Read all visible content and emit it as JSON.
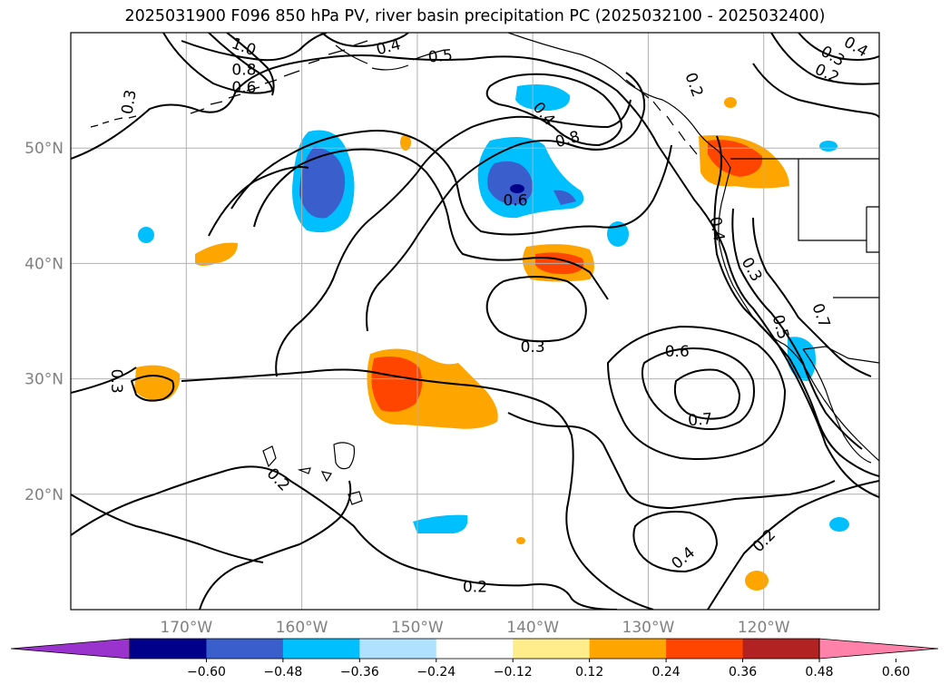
{
  "title": "2025031900 F096 850 hPa PV, river basin precipitation PC (2025032100 - 2025032400)",
  "map": {
    "lon_range": [
      -180,
      -110
    ],
    "lat_range": [
      10,
      60
    ],
    "lon_ticks": [
      {
        "lon": -170,
        "label": "170°W"
      },
      {
        "lon": -160,
        "label": "160°W"
      },
      {
        "lon": -150,
        "label": "150°W"
      },
      {
        "lon": -140,
        "label": "140°W"
      },
      {
        "lon": -130,
        "label": "130°W"
      },
      {
        "lon": -120,
        "label": "120°W"
      }
    ],
    "lat_ticks": [
      {
        "lat": 20,
        "label": "20°N"
      },
      {
        "lat": 30,
        "label": "30°N"
      },
      {
        "lat": 40,
        "label": "40°N"
      },
      {
        "lat": 50,
        "label": "50°N"
      }
    ],
    "grid": true,
    "contour_labels": [
      {
        "lon": -175,
        "lat": 54.0,
        "text": "0.3",
        "rot": -80
      },
      {
        "lon": -165,
        "lat": 58.8,
        "text": "1.0",
        "rot": 20
      },
      {
        "lon": -165,
        "lat": 56.8,
        "text": "0.8",
        "rot": 0
      },
      {
        "lon": -165,
        "lat": 55.3,
        "text": "0.6",
        "rot": 0
      },
      {
        "lon": -152.5,
        "lat": 58.8,
        "text": "0.4",
        "rot": -15
      },
      {
        "lon": -148,
        "lat": 58.0,
        "text": "0.5",
        "rot": -5
      },
      {
        "lon": -126,
        "lat": 55.5,
        "text": "0.2",
        "rot": 70
      },
      {
        "lon": -139,
        "lat": 53.0,
        "text": "0.4",
        "rot": 50
      },
      {
        "lon": -137,
        "lat": 50.8,
        "text": "0.8",
        "rot": -15
      },
      {
        "lon": -141.5,
        "lat": 45.5,
        "text": "0.6",
        "rot": 0
      },
      {
        "lon": -114,
        "lat": 58.0,
        "text": "0.3",
        "rot": 30
      },
      {
        "lon": -112,
        "lat": 58.8,
        "text": "0.4",
        "rot": 30
      },
      {
        "lon": -114.5,
        "lat": 56.5,
        "text": "0.2",
        "rot": 25
      },
      {
        "lon": -124,
        "lat": 43.0,
        "text": "0.4",
        "rot": 80
      },
      {
        "lon": -121,
        "lat": 39.5,
        "text": "0.3",
        "rot": 60
      },
      {
        "lon": -118.5,
        "lat": 34.5,
        "text": "0.5",
        "rot": 75
      },
      {
        "lon": -115,
        "lat": 35.5,
        "text": "0.7",
        "rot": 70
      },
      {
        "lon": -140,
        "lat": 32.8,
        "text": "0.3",
        "rot": 0
      },
      {
        "lon": -127.5,
        "lat": 32.4,
        "text": "0.6",
        "rot": 0
      },
      {
        "lon": -125.5,
        "lat": 26.5,
        "text": "0.7",
        "rot": -5
      },
      {
        "lon": -176,
        "lat": 29.8,
        "text": "0.3",
        "rot": 90
      },
      {
        "lon": -162,
        "lat": 21.3,
        "text": "0.2",
        "rot": 45
      },
      {
        "lon": -127,
        "lat": 14.5,
        "text": "0.4",
        "rot": -40
      },
      {
        "lon": -120,
        "lat": 16.0,
        "text": "0.2",
        "rot": -45
      },
      {
        "lon": -145,
        "lat": 12.0,
        "text": "0.2",
        "rot": 0
      }
    ]
  },
  "colorbar": {
    "colors": [
      "#9a32cd",
      "#00008b",
      "#3a5fcd",
      "#00bfff",
      "#b0e2ff",
      "#ffffff",
      "#ffec8b",
      "#ffa500",
      "#ff4500",
      "#b22222",
      "#ff82ab"
    ],
    "tick_labels": [
      "−0.60",
      "−0.48",
      "−0.36",
      "−0.24",
      "−0.12",
      "0.12",
      "0.24",
      "0.36",
      "0.48",
      "0.60"
    ],
    "extend": "both"
  }
}
